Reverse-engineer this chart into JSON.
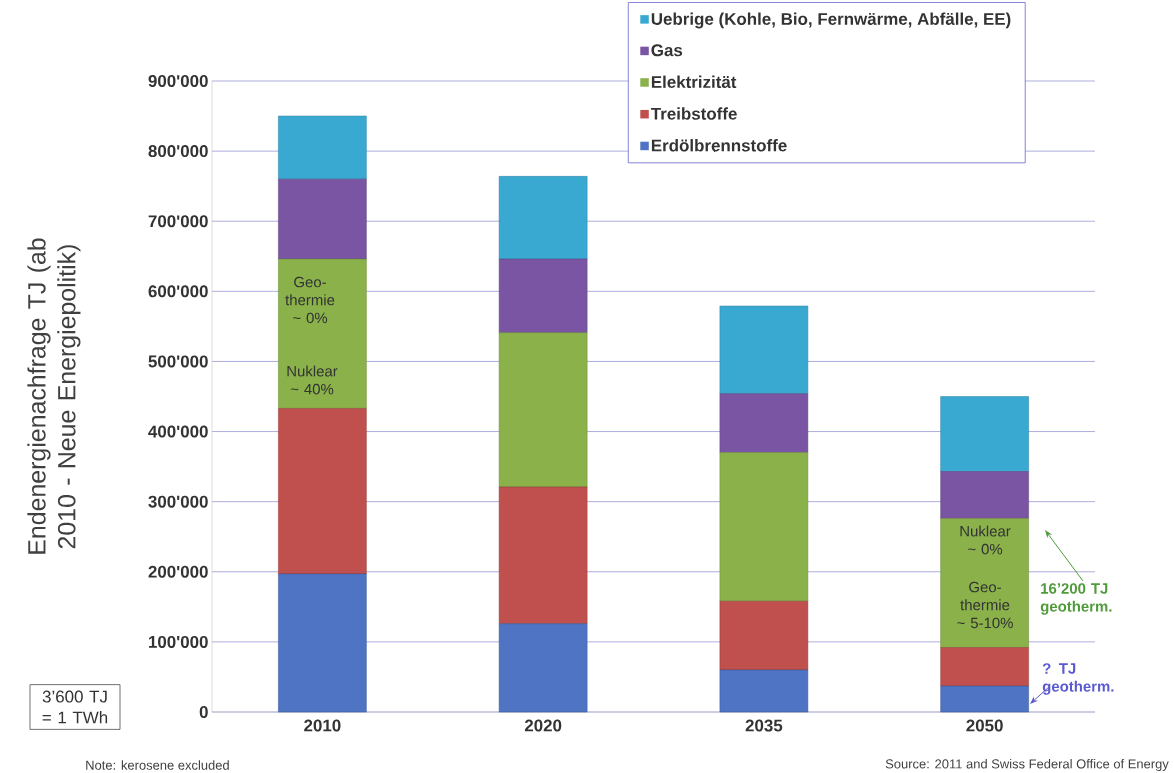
{
  "chart_data": {
    "type": "bar",
    "stacked": true,
    "ylabel": "Endenergienachfrage  TJ (ab 2010 - Neue Energiepolitik)",
    "categories": [
      "2010",
      "2020",
      "2035",
      "2050"
    ],
    "series": [
      {
        "name": "Erdölbrennstoffe",
        "color": "#4f74c4",
        "values": [
          197000,
          126000,
          60000,
          37000
        ]
      },
      {
        "name": "Treibstoffe",
        "color": "#c0504d",
        "values": [
          236000,
          195000,
          98000,
          55000
        ]
      },
      {
        "name": "Elektrizität",
        "color": "#8bb24a",
        "values": [
          213000,
          220000,
          212000,
          184000
        ]
      },
      {
        "name": "Gas",
        "color": "#7a55a3",
        "values": [
          114000,
          105000,
          84000,
          67000
        ]
      },
      {
        "name": "Uebrige (Kohle, Bio, Fernwärme, Abfälle, EE)",
        "color": "#3aa9d2",
        "values": [
          90000,
          118000,
          125000,
          107000
        ]
      }
    ],
    "ylim": [
      0,
      900000
    ],
    "yticks": [
      {
        "value": 0,
        "label": "0"
      },
      {
        "value": 100000,
        "label": "100'000"
      },
      {
        "value": 200000,
        "label": "200'000"
      },
      {
        "value": 300000,
        "label": "300'000"
      },
      {
        "value": 400000,
        "label": "400'000"
      },
      {
        "value": 500000,
        "label": "500'000"
      },
      {
        "value": 600000,
        "label": "600'000"
      },
      {
        "value": 700000,
        "label": "700'000"
      },
      {
        "value": 800000,
        "label": "800'000"
      },
      {
        "value": 900000,
        "label": "900'000"
      }
    ],
    "grid": "y",
    "legend": "top right",
    "annotations": [
      "Geo- thermie ~ 0%",
      "Nuklear ~ 40%",
      "Nuklear ~ 0%",
      "Geo- thermie ~ 5-10%",
      "16’200 TJ geotherm.",
      "? TJ geotherm.",
      "3’600 TJ = 1 TWh",
      "Note: kerosene excluded",
      "Source: 2011 and Swiss Federal Office of Energy"
    ]
  }
}
